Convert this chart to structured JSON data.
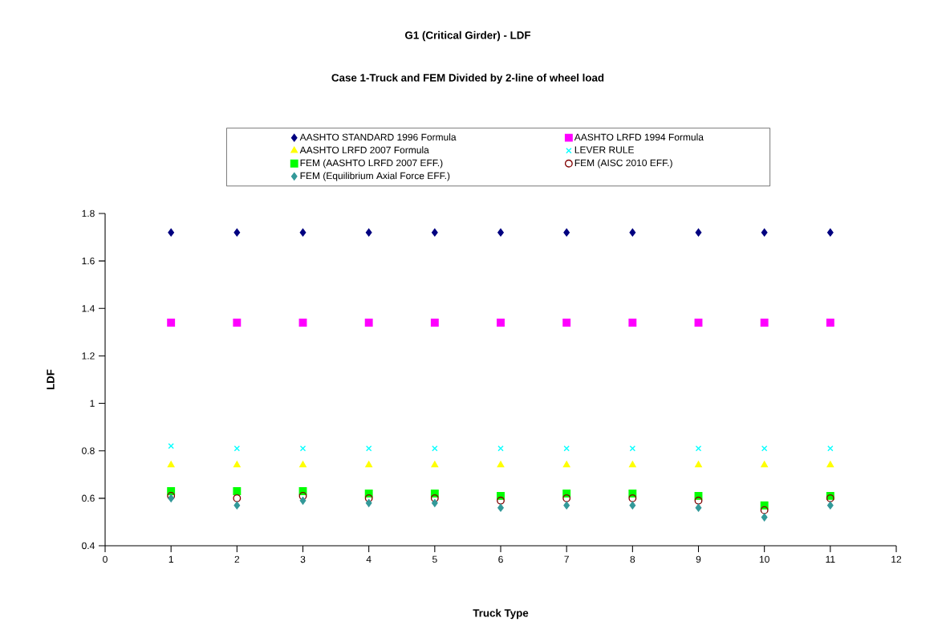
{
  "chart_data": {
    "type": "scatter",
    "title": "G1 (Critical Girder) - LDF",
    "subtitle": "Case 1-Truck and FEM Divided by 2-line of wheel load",
    "xlabel": "Truck Type",
    "ylabel": "LDF",
    "x": [
      1,
      2,
      3,
      4,
      5,
      6,
      7,
      8,
      9,
      10,
      11
    ],
    "series": [
      {
        "name": "AASHTO STANDARD  1996 Formula",
        "color": "#000080",
        "marker": "diamond",
        "values": [
          1.72,
          1.72,
          1.72,
          1.72,
          1.72,
          1.72,
          1.72,
          1.72,
          1.72,
          1.72,
          1.72
        ]
      },
      {
        "name": "AASHTO LRFD 1994 Formula",
        "color": "#ff00ff",
        "marker": "square",
        "values": [
          1.34,
          1.34,
          1.34,
          1.34,
          1.34,
          1.34,
          1.34,
          1.34,
          1.34,
          1.34,
          1.34
        ]
      },
      {
        "name": "AASHTO LRFD 2007 Formula",
        "color": "#ffff00",
        "marker": "triangle",
        "values": [
          0.74,
          0.74,
          0.74,
          0.74,
          0.74,
          0.74,
          0.74,
          0.74,
          0.74,
          0.74,
          0.74
        ]
      },
      {
        "name": "LEVER RULE",
        "color": "#00ffff",
        "marker": "cross",
        "values": [
          0.82,
          0.81,
          0.81,
          0.81,
          0.81,
          0.81,
          0.81,
          0.81,
          0.81,
          0.81,
          0.81
        ]
      },
      {
        "name": "FEM (AASHTO LRFD 2007 EFF.)",
        "color": "#00ff00",
        "marker": "square",
        "values": [
          0.63,
          0.63,
          0.63,
          0.62,
          0.62,
          0.61,
          0.62,
          0.62,
          0.61,
          0.57,
          0.61
        ]
      },
      {
        "name": "FEM (AISC 2010 EFF.)",
        "color": "#800000",
        "marker": "circle",
        "values": [
          0.61,
          0.6,
          0.61,
          0.6,
          0.6,
          0.59,
          0.6,
          0.6,
          0.59,
          0.55,
          0.6
        ]
      },
      {
        "name": "FEM (Equilibrium Axial Force EFF.)",
        "color": "#339999",
        "marker": "diamond",
        "values": [
          0.6,
          0.57,
          0.59,
          0.58,
          0.58,
          0.56,
          0.57,
          0.57,
          0.56,
          0.52,
          0.57
        ]
      }
    ],
    "xlim": [
      0,
      12
    ],
    "xticks": [
      0,
      1,
      2,
      3,
      4,
      5,
      6,
      7,
      8,
      9,
      10,
      11,
      12
    ],
    "ylim": [
      0.4,
      1.8
    ],
    "yticks": [
      0.4,
      0.6,
      0.8,
      1,
      1.2,
      1.4,
      1.6,
      1.8
    ],
    "grid": false,
    "legend": "top"
  }
}
